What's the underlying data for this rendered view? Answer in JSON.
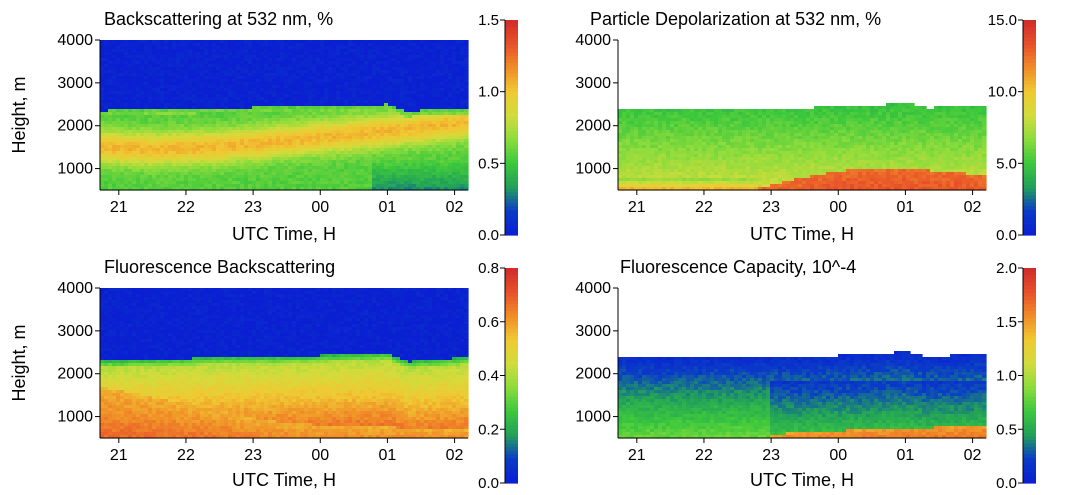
{
  "page": {
    "figure_labels": []
  },
  "colormap": [
    "#0a1ed2",
    "#0a3cc8",
    "#22a05a",
    "#3cc83c",
    "#8cdc3c",
    "#d2dc3c",
    "#f0c832",
    "#f08c28",
    "#e8502a",
    "#d02a2a"
  ],
  "chart_data": [
    {
      "type": "heatmap",
      "title": "Backscattering at 532 nm, %",
      "xlabel": "UTC Time, H",
      "ylabel": "Height, m",
      "xticks": [
        "21",
        "22",
        "23",
        "00",
        "01",
        "02"
      ],
      "xtick_hours": [
        21,
        22,
        23,
        24,
        25,
        26
      ],
      "xlim_hours": [
        20.72,
        26.2
      ],
      "yticks": [
        1000,
        2000,
        3000,
        4000
      ],
      "ylim": [
        500,
        4000
      ],
      "colorbar": {
        "min": 0.0,
        "max": 1.5,
        "ticks": [
          "0.0",
          "0.5",
          "1.0",
          "1.5"
        ],
        "tick_values": [
          0.0,
          0.5,
          1.0,
          1.5
        ]
      },
      "description_fields": {
        "top_boundary_m": [
          [
            20.72,
            2350
          ],
          [
            21.5,
            2380
          ],
          [
            22.5,
            2420
          ],
          [
            23.5,
            2430
          ],
          [
            24.5,
            2460
          ],
          [
            25.0,
            2500
          ],
          [
            25.3,
            2320
          ],
          [
            25.6,
            2380
          ],
          [
            26.2,
            2400
          ]
        ],
        "above_boundary_value": 0.02,
        "layer_center_m": [
          [
            20.72,
            1500
          ],
          [
            21.5,
            1450
          ],
          [
            22.5,
            1500
          ],
          [
            23.5,
            1650
          ],
          [
            24.5,
            1800
          ],
          [
            25.5,
            1950
          ],
          [
            26.2,
            2080
          ]
        ],
        "layer_peak_value": 1.05,
        "base_value": 0.55
      }
    },
    {
      "type": "heatmap",
      "title": "Particle Depolarization at 532 nm, %",
      "xlabel": "UTC Time, H",
      "ylabel": "",
      "xticks": [
        "21",
        "22",
        "23",
        "00",
        "01",
        "02"
      ],
      "xtick_hours": [
        21,
        22,
        23,
        24,
        25,
        26
      ],
      "xlim_hours": [
        20.72,
        26.2
      ],
      "yticks": [
        1000,
        2000,
        3000,
        4000
      ],
      "ylim": [
        500,
        4000
      ],
      "colorbar": {
        "min": 0.0,
        "max": 15.0,
        "ticks": [
          "0.0",
          "5.0",
          "10.0",
          "15.0"
        ],
        "tick_values": [
          0.0,
          5.0,
          10.0,
          15.0
        ]
      },
      "description_fields": {
        "top_boundary_m": [
          [
            20.72,
            2400
          ],
          [
            21.5,
            2380
          ],
          [
            22.5,
            2420
          ],
          [
            23.5,
            2420
          ],
          [
            24.5,
            2460
          ],
          [
            25.0,
            2540
          ],
          [
            25.3,
            2420
          ],
          [
            26.2,
            2460
          ]
        ],
        "above_boundary": "blank",
        "low_level_peak_m": [
          [
            20.72,
            600
          ],
          [
            22.9,
            550
          ],
          [
            23.2,
            700
          ],
          [
            24.0,
            950
          ],
          [
            25.0,
            1000
          ],
          [
            26.2,
            850
          ]
        ],
        "low_level_peak_value": 14.0,
        "mid_value": 7.0
      }
    },
    {
      "type": "heatmap",
      "title": "Fluorescence Backscattering",
      "xlabel": "UTC Time, H",
      "ylabel": "Height, m",
      "xticks": [
        "21",
        "22",
        "23",
        "00",
        "01",
        "02"
      ],
      "xtick_hours": [
        21,
        22,
        23,
        24,
        25,
        26
      ],
      "xlim_hours": [
        20.72,
        26.2
      ],
      "yticks": [
        1000,
        2000,
        3000,
        4000
      ],
      "ylim": [
        500,
        4000
      ],
      "colorbar": {
        "min": 0.0,
        "max": 0.8,
        "ticks": [
          "0.0",
          "0.2",
          "0.4",
          "0.6",
          "0.8"
        ],
        "tick_values": [
          0.0,
          0.2,
          0.4,
          0.6,
          0.8
        ]
      },
      "description_fields": {
        "top_boundary_m": [
          [
            20.72,
            2300
          ],
          [
            21.5,
            2320
          ],
          [
            22.5,
            2380
          ],
          [
            23.5,
            2400
          ],
          [
            24.5,
            2450
          ],
          [
            25.0,
            2480
          ],
          [
            25.3,
            2280
          ],
          [
            26.2,
            2380
          ]
        ],
        "above_boundary_value": 0.01,
        "low_peak_top_m": [
          [
            20.72,
            1700
          ],
          [
            21.5,
            1450
          ],
          [
            22.5,
            1150
          ],
          [
            23.2,
            900
          ],
          [
            24.0,
            800
          ],
          [
            25.0,
            750
          ],
          [
            26.2,
            700
          ]
        ],
        "low_peak_value": 0.72,
        "mid_value": 0.38
      }
    },
    {
      "type": "heatmap",
      "title": "Fluorescence Capacity, 10^-4",
      "xlabel": "UTC Time, H",
      "ylabel": "",
      "xticks": [
        "21",
        "22",
        "23",
        "00",
        "01",
        "02"
      ],
      "xtick_hours": [
        21,
        22,
        23,
        24,
        25,
        26
      ],
      "xlim_hours": [
        20.72,
        26.2
      ],
      "yticks": [
        1000,
        2000,
        3000,
        4000
      ],
      "ylim": [
        500,
        4000
      ],
      "colorbar": {
        "min": 0.0,
        "max": 2.0,
        "ticks": [
          "0.0",
          "0.5",
          "1.0",
          "1.5",
          "2.0"
        ],
        "tick_values": [
          0.0,
          0.5,
          1.0,
          1.5,
          2.0
        ]
      },
      "description_fields": {
        "top_boundary_m": [
          [
            20.72,
            2400
          ],
          [
            21.5,
            2380
          ],
          [
            22.5,
            2400
          ],
          [
            23.5,
            2400
          ],
          [
            24.5,
            2450
          ],
          [
            25.0,
            2520
          ],
          [
            25.3,
            2400
          ],
          [
            26.2,
            2460
          ]
        ],
        "above_boundary": "blank",
        "top_value": 0.1,
        "low_level_peak_m": [
          [
            20.72,
            520
          ],
          [
            22.9,
            520
          ],
          [
            23.3,
            620
          ],
          [
            24.5,
            700
          ],
          [
            25.5,
            750
          ],
          [
            26.2,
            800
          ]
        ],
        "low_level_peak_value": 1.9,
        "mid_value": 0.8
      }
    }
  ]
}
